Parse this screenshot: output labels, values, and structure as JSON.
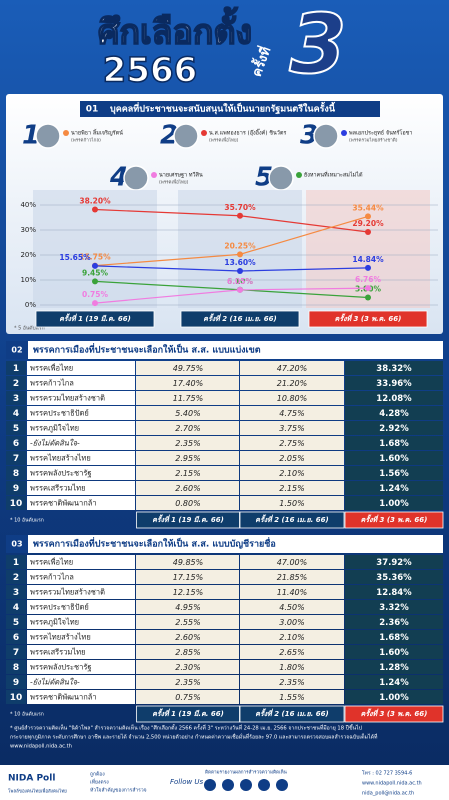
{
  "header": {
    "title": "ศึกเลือกตั้ง",
    "year": "2566",
    "round_word": "ครั้งที่",
    "round_no": "3"
  },
  "section1": {
    "number": "01",
    "title": "บุคคลที่ประชาชนจะสนับสนุนให้เป็นนายกรัฐมนตรีในครั้งนี้",
    "note": "* 5 อันดับแรก"
  },
  "candidates": [
    {
      "rank": "1",
      "name": "นายพิธา ลิ้มเจริญรัตน์",
      "party": "(พรรคก้าวไกล)",
      "color": "#f58a42"
    },
    {
      "rank": "2",
      "name": "น.ส.แพทองธาร (อุ๊งอิ๊งค์) ชินวัตร",
      "party": "(พรรคเพื่อไทย)",
      "color": "#e53935"
    },
    {
      "rank": "3",
      "name": "พลเอกประยุทธ์ จันทร์โอชา",
      "party": "(พรรครวมไทยสร้างชาติ)",
      "color": "#2b3de0"
    },
    {
      "rank": "4",
      "name": "นายเศรษฐา ทวีสิน",
      "party": "(พรรคเพื่อไทย)",
      "color": "#f07ce0"
    },
    {
      "rank": "5",
      "name": "ยังหาคนที่เหมาะสมไม่ได้",
      "party": null,
      "color": "#3aa23a"
    }
  ],
  "chart_data": {
    "type": "line",
    "categories": [
      "ครั้งที่ 1 (19 มี.ค. 66)",
      "ครั้งที่ 2 (16 เม.ย. 66)",
      "ครั้งที่ 3 (3 พ.ค. 66)"
    ],
    "ylim": [
      0,
      40
    ],
    "yticks": [
      {
        "value": 0,
        "label": "0%"
      },
      {
        "value": 10,
        "label": "10%"
      },
      {
        "value": 20,
        "label": "20%"
      },
      {
        "value": 30,
        "label": "30%"
      },
      {
        "value": 40,
        "label": "40%"
      }
    ],
    "series": [
      {
        "name": "น.ส.แพทองธาร (อุ๊งอิ๊งค์) ชินวัตร",
        "color": "#e53935",
        "values": [
          38.2,
          35.7,
          29.2
        ],
        "value_labels": [
          "38.20%",
          "35.70%",
          "29.20%"
        ]
      },
      {
        "name": "นายพิธา ลิ้มเจริญรัตน์",
        "color": "#f58a42",
        "values": [
          15.75,
          20.25,
          35.44
        ],
        "value_labels": [
          "15.75%",
          "20.25%",
          "35.44%"
        ]
      },
      {
        "name": "พลเอกประยุทธ์ จันทร์โอชา",
        "color": "#2b3de0",
        "values": [
          15.65,
          13.6,
          14.84
        ],
        "value_labels": [
          "15.65%",
          "13.60%",
          "14.84%"
        ]
      },
      {
        "name": "ยังหาคนที่เหมาะสมไม่ได้",
        "color": "#3aa23a",
        "values": [
          9.45,
          6.1,
          3.0
        ],
        "value_labels": [
          "9.45%",
          "6.10%",
          "3.00%"
        ]
      },
      {
        "name": "นายเศรษฐา ทวีสิน",
        "color": "#f07ce0",
        "values": [
          0.75,
          6.05,
          6.76
        ],
        "value_labels": [
          "0.75%",
          "6.05%",
          "6.76%"
        ]
      }
    ]
  },
  "table2": {
    "number": "02",
    "title": "พรรคการเมืองที่ประชาชนจะเลือกให้เป็น ส.ส. แบบแบ่งเขต",
    "note": "* 10 อันดับแรก",
    "rows": [
      [
        "1",
        "พรรคเพื่อไทย",
        "49.75%",
        "47.20%",
        "38.32%"
      ],
      [
        "2",
        "พรรคก้าวไกล",
        "17.40%",
        "21.20%",
        "33.96%"
      ],
      [
        "3",
        "พรรครวมไทยสร้างชาติ",
        "11.75%",
        "10.80%",
        "12.08%"
      ],
      [
        "4",
        "พรรคประชาธิปัตย์",
        "5.40%",
        "4.75%",
        "4.28%"
      ],
      [
        "5",
        "พรรคภูมิใจไทย",
        "2.70%",
        "3.75%",
        "2.92%"
      ],
      [
        "6",
        "-ยังไม่ตัดสินใจ-",
        "2.35%",
        "2.75%",
        "1.68%"
      ],
      [
        "7",
        "พรรคไทยสร้างไทย",
        "2.95%",
        "2.05%",
        "1.60%"
      ],
      [
        "8",
        "พรรคพลังประชารัฐ",
        "2.15%",
        "2.10%",
        "1.56%"
      ],
      [
        "9",
        "พรรคเสรีรวมไทย",
        "2.60%",
        "2.15%",
        "1.24%"
      ],
      [
        "10",
        "พรรคชาติพัฒนากล้า",
        "0.80%",
        "1.50%",
        "1.00%"
      ]
    ]
  },
  "table3": {
    "number": "03",
    "title": "พรรคการเมืองที่ประชาชนจะเลือกให้เป็น ส.ส. แบบบัญชีรายชื่อ",
    "note": "* 10 อันดับแรก",
    "rows": [
      [
        "1",
        "พรรคเพื่อไทย",
        "49.85%",
        "47.00%",
        "37.92%"
      ],
      [
        "2",
        "พรรคก้าวไกล",
        "17.15%",
        "21.85%",
        "35.36%"
      ],
      [
        "3",
        "พรรครวมไทยสร้างชาติ",
        "12.15%",
        "11.40%",
        "12.84%"
      ],
      [
        "4",
        "พรรคประชาธิปัตย์",
        "4.95%",
        "4.50%",
        "3.32%"
      ],
      [
        "5",
        "พรรคภูมิใจไทย",
        "2.55%",
        "3.00%",
        "2.36%"
      ],
      [
        "6",
        "พรรคไทยสร้างไทย",
        "2.60%",
        "2.10%",
        "1.68%"
      ],
      [
        "7",
        "พรรคเสรีรวมไทย",
        "2.85%",
        "2.65%",
        "1.60%"
      ],
      [
        "8",
        "พรรคพลังประชารัฐ",
        "2.30%",
        "1.80%",
        "1.28%"
      ],
      [
        "9",
        "-ยังไม่ตัดสินใจ-",
        "2.35%",
        "2.35%",
        "1.24%"
      ],
      [
        "10",
        "พรรคชาติพัฒนากล้า",
        "0.75%",
        "1.55%",
        "1.00%"
      ]
    ]
  },
  "footnote": [
    "* ศูนย์สำรวจความคิดเห็น \"นิด้าโพล\" สำรวจความคิดเห็น เรื่อง \"ศึกเลือกตั้ง 2566 ครั้งที่ 3\" ระหว่างวันที่ 24-28 เม.ย. 2566 จากประชาชนที่มีอายุ 18 ปีขึ้นไป",
    "กระจายทุกภูมิภาค ระดับการศึกษา อาชีพ และรายได้ จำนวน 2,500 หน่วยตัวอย่าง กำหนดค่าความเชื่อมั่นที่ร้อยละ 97.0 และสามารถตรวจสอบผลสำรวจฉบับเต็มได้ที่",
    "www.nidapoll.nida.ac.th"
  ],
  "footer": {
    "brand": "NIDA Poll",
    "slogan": "โพลล์ของคนไทยเพื่อสังคมไทย",
    "motto1": "ถูกต้อง",
    "motto2": "เที่ยงตรง",
    "motto3": "หัวใจสำคัญของการสำรวจ",
    "follow": "Follow Us",
    "tagline": "ติดตามรายงานผลการสำรวจความคิดเห็น",
    "tel": "โทร : 02 727 3594-6",
    "web": "www.nidapoll.nida.ac.th",
    "email": "nida_poll@nida.ac.th"
  }
}
